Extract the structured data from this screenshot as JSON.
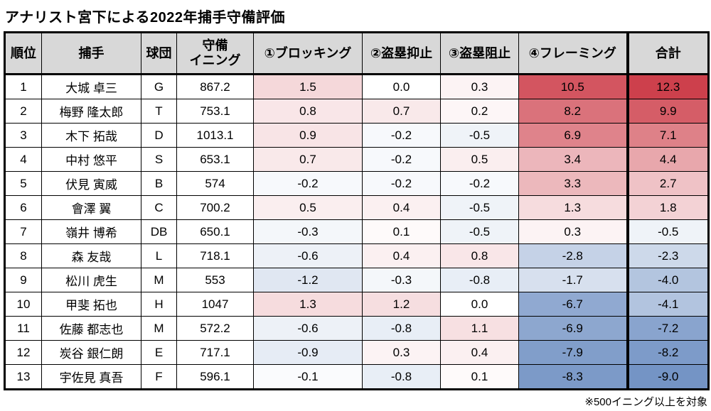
{
  "title": "アナリスト宮下による2022年捕手守備評価",
  "footnote": "※500イニング以上を対象",
  "heat": {
    "positive_color": "#cd404c",
    "negative_color": "#7494c5",
    "positive_max": 12.3,
    "negative_max": 9.0,
    "header_bg": "#d8d8d8"
  },
  "chart_data": {
    "type": "table",
    "title": "アナリスト宮下による2022年捕手守備評価",
    "columns": [
      "順位",
      "捕手",
      "球団",
      "守備\nイニング",
      "①ブロッキング",
      "②盗塁抑止",
      "③盗塁阻止",
      "④フレーミング",
      "合計"
    ],
    "heat_columns": [
      "①ブロッキング",
      "②盗塁抑止",
      "③盗塁阻止",
      "④フレーミング",
      "合計"
    ],
    "rows": [
      {
        "rank": "1",
        "name": "大城 卓三",
        "team": "G",
        "innings": "867.2",
        "values": [
          1.5,
          0.0,
          0.3,
          10.5,
          12.3
        ]
      },
      {
        "rank": "2",
        "name": "梅野 隆太郎",
        "team": "T",
        "innings": "753.1",
        "values": [
          0.8,
          0.7,
          0.2,
          8.2,
          9.9
        ]
      },
      {
        "rank": "3",
        "name": "木下 拓哉",
        "team": "D",
        "innings": "1013.1",
        "values": [
          0.9,
          -0.2,
          -0.5,
          6.9,
          7.1
        ]
      },
      {
        "rank": "4",
        "name": "中村 悠平",
        "team": "S",
        "innings": "653.1",
        "values": [
          0.7,
          -0.2,
          0.5,
          3.4,
          4.4
        ]
      },
      {
        "rank": "5",
        "name": "伏見 寅威",
        "team": "B",
        "innings": "574",
        "values": [
          -0.2,
          -0.2,
          -0.2,
          3.3,
          2.7
        ]
      },
      {
        "rank": "6",
        "name": "會澤 翼",
        "team": "C",
        "innings": "700.2",
        "values": [
          0.5,
          0.4,
          -0.5,
          1.3,
          1.8
        ]
      },
      {
        "rank": "7",
        "name": "嶺井 博希",
        "team": "DB",
        "innings": "650.1",
        "values": [
          -0.3,
          0.1,
          -0.5,
          0.3,
          -0.5
        ]
      },
      {
        "rank": "8",
        "name": "森 友哉",
        "team": "L",
        "innings": "718.1",
        "values": [
          -0.6,
          0.4,
          0.8,
          -2.8,
          -2.3
        ]
      },
      {
        "rank": "9",
        "name": "松川 虎生",
        "team": "M",
        "innings": "553",
        "values": [
          -1.2,
          -0.3,
          -0.8,
          -1.7,
          -4.0
        ]
      },
      {
        "rank": "10",
        "name": "甲斐 拓也",
        "team": "H",
        "innings": "1047",
        "values": [
          1.3,
          1.2,
          0.0,
          -6.7,
          -4.1
        ]
      },
      {
        "rank": "11",
        "name": "佐藤 都志也",
        "team": "M",
        "innings": "572.2",
        "values": [
          -0.6,
          -0.8,
          1.1,
          -6.9,
          -7.2
        ]
      },
      {
        "rank": "12",
        "name": "炭谷 銀仁朗",
        "team": "E",
        "innings": "717.1",
        "values": [
          -0.9,
          0.3,
          0.4,
          -7.9,
          -8.2
        ]
      },
      {
        "rank": "13",
        "name": "宇佐見 真吾",
        "team": "F",
        "innings": "596.1",
        "values": [
          -0.1,
          -0.8,
          0.1,
          -8.3,
          -9.0
        ]
      }
    ]
  }
}
